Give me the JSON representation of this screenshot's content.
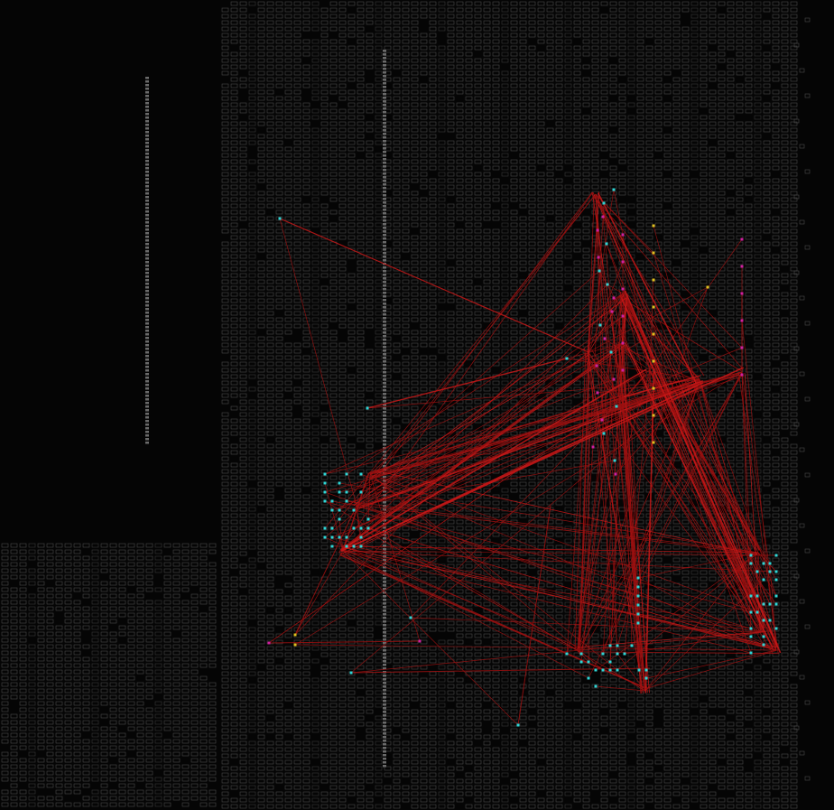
{
  "view": {
    "background_color": "#050505",
    "grid_color": "#4a4a4a",
    "grid_color_dim": "#3a3a3a",
    "column_color": "#6a6a6a",
    "net_color": "#a01010",
    "net_color_bright": "#c81818"
  },
  "cell_types": {
    "input_pin": {
      "color": "#2fd6d6",
      "icon": "square-marker"
    },
    "output_pin": {
      "color": "#e0c020",
      "icon": "square-marker"
    },
    "logic_cell": {
      "color": "#d020a0",
      "icon": "square-marker"
    }
  },
  "regions": [
    {
      "id": "upper-fabric",
      "label": ""
    },
    {
      "id": "lower-left-fabric",
      "label": ""
    }
  ]
}
